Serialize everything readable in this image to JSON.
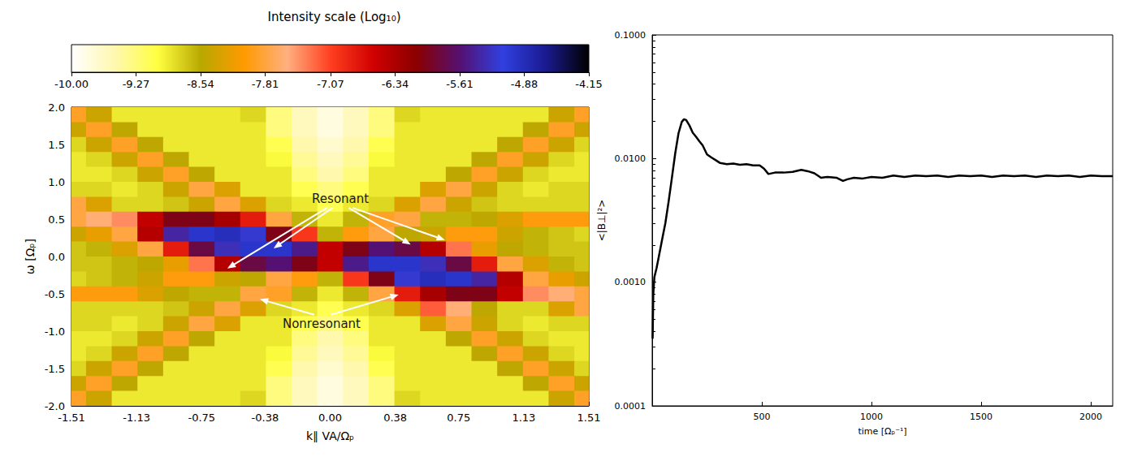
{
  "chart_data": [
    {
      "type": "heatmap",
      "xlabel": "k∥ VA/Ωₚ",
      "ylabel": "ω [Ωₚ]",
      "x": [
        -1.5,
        -1.35,
        -1.2,
        -1.05,
        -0.9,
        -0.75,
        -0.6,
        -0.45,
        -0.3,
        -0.15,
        0,
        0.15,
        0.3,
        0.45,
        0.6,
        0.75,
        0.9,
        1.05,
        1.2,
        1.35,
        1.5
      ],
      "y": [
        1.9,
        1.7,
        1.5,
        1.3,
        1.1,
        0.9,
        0.7,
        0.5,
        0.3,
        0.1,
        -0.1,
        -0.3,
        -0.5,
        -0.7,
        -0.9,
        -1.1,
        -1.3,
        -1.5,
        -1.7,
        -1.9
      ],
      "cells": [
        [
          -7.9,
          -8.4,
          -8.9,
          -8.9,
          -8.9,
          -8.9,
          -8.9,
          -8.8,
          -9.3,
          -9.6,
          -9.8,
          -9.6,
          -9.3,
          -8.8,
          -8.9,
          -8.9,
          -8.9,
          -8.9,
          -8.9,
          -8.4,
          -7.9
        ],
        [
          -8.4,
          -7.9,
          -8.5,
          -8.9,
          -8.9,
          -8.9,
          -8.9,
          -8.9,
          -9.3,
          -9.6,
          -9.8,
          -9.6,
          -9.3,
          -8.9,
          -8.9,
          -8.9,
          -8.9,
          -8.9,
          -8.5,
          -7.9,
          -8.4
        ],
        [
          -8.8,
          -8.4,
          -7.9,
          -8.5,
          -8.9,
          -8.9,
          -8.9,
          -8.9,
          -9.1,
          -9.5,
          -9.7,
          -9.5,
          -9.1,
          -8.9,
          -8.9,
          -8.9,
          -8.9,
          -8.5,
          -7.9,
          -8.4,
          -8.8
        ],
        [
          -8.9,
          -8.8,
          -8.4,
          -7.9,
          -8.5,
          -8.9,
          -8.9,
          -8.9,
          -9.0,
          -9.4,
          -9.6,
          -9.4,
          -9.0,
          -8.9,
          -8.9,
          -8.9,
          -8.5,
          -7.9,
          -8.4,
          -8.8,
          -8.9
        ],
        [
          -8.9,
          -8.9,
          -8.8,
          -8.4,
          -7.9,
          -8.5,
          -8.9,
          -8.9,
          -8.9,
          -9.3,
          -9.5,
          -9.3,
          -8.9,
          -8.9,
          -8.9,
          -8.5,
          -7.9,
          -8.4,
          -8.8,
          -8.9,
          -8.9
        ],
        [
          -8.8,
          -8.8,
          -8.9,
          -8.8,
          -8.4,
          -7.8,
          -8.3,
          -8.9,
          -8.9,
          -9.1,
          -9.3,
          -9.1,
          -8.9,
          -8.9,
          -8.3,
          -7.8,
          -8.4,
          -8.8,
          -8.9,
          -8.8,
          -8.8
        ],
        [
          -7.8,
          -8.3,
          -8.8,
          -8.8,
          -8.7,
          -8.4,
          -7.8,
          -8.3,
          -8.8,
          -8.9,
          -9.1,
          -8.9,
          -8.8,
          -8.3,
          -7.8,
          -8.4,
          -8.7,
          -8.8,
          -8.8,
          -8.8,
          -8.8
        ],
        [
          -7.8,
          -7.6,
          -7.4,
          -6.5,
          -6.0,
          -6.0,
          -6.3,
          -6.8,
          -7.8,
          -8.6,
          -8.9,
          -8.6,
          -7.9,
          -7.8,
          -8.6,
          -8.6,
          -8.5,
          -8.3,
          -8.0,
          -8.0,
          -8.0
        ],
        [
          -8.4,
          -8.2,
          -7.8,
          -6.4,
          -5.4,
          -5.0,
          -4.9,
          -5.2,
          -6.0,
          -7.0,
          -8.6,
          -8.0,
          -7.8,
          -8.5,
          -8.4,
          -8.0,
          -8.0,
          -8.4,
          -8.6,
          -8.7,
          -8.8
        ],
        [
          -8.7,
          -8.6,
          -8.3,
          -7.8,
          -6.8,
          -5.8,
          -5.3,
          -5.0,
          -5.0,
          -5.5,
          -6.5,
          -6.0,
          -5.6,
          -5.8,
          -6.4,
          -7.3,
          -8.2,
          -8.5,
          -8.6,
          -8.7,
          -8.7
        ],
        [
          -8.7,
          -8.7,
          -8.6,
          -8.5,
          -8.2,
          -7.3,
          -6.4,
          -5.8,
          -5.6,
          -6.0,
          -6.5,
          -5.5,
          -5.0,
          -5.0,
          -5.3,
          -5.8,
          -6.8,
          -7.8,
          -8.3,
          -8.6,
          -8.7
        ],
        [
          -8.8,
          -8.7,
          -8.6,
          -8.4,
          -8.0,
          -8.0,
          -8.4,
          -8.5,
          -7.8,
          -8.0,
          -8.6,
          -7.0,
          -6.0,
          -5.2,
          -4.9,
          -5.0,
          -5.4,
          -6.4,
          -7.8,
          -8.2,
          -8.4
        ],
        [
          -8.0,
          -8.0,
          -8.0,
          -8.3,
          -8.5,
          -8.6,
          -8.6,
          -7.8,
          -7.9,
          -8.6,
          -8.9,
          -8.6,
          -7.8,
          -6.8,
          -6.3,
          -6.0,
          -6.0,
          -6.5,
          -7.4,
          -7.6,
          -7.8
        ],
        [
          -8.8,
          -8.8,
          -8.8,
          -8.8,
          -8.7,
          -8.4,
          -7.8,
          -8.3,
          -8.8,
          -8.9,
          -9.1,
          -8.9,
          -8.8,
          -8.3,
          -7.2,
          -7.6,
          -8.5,
          -8.8,
          -8.8,
          -8.3,
          -7.8
        ],
        [
          -8.8,
          -8.8,
          -8.9,
          -8.8,
          -8.4,
          -7.8,
          -8.3,
          -8.9,
          -8.9,
          -9.1,
          -9.3,
          -9.1,
          -8.9,
          -8.9,
          -8.3,
          -7.8,
          -8.4,
          -8.8,
          -8.9,
          -8.8,
          -8.8
        ],
        [
          -8.9,
          -8.9,
          -8.8,
          -8.4,
          -7.9,
          -8.5,
          -8.9,
          -8.9,
          -8.9,
          -9.3,
          -9.5,
          -9.3,
          -8.9,
          -8.9,
          -8.9,
          -8.5,
          -7.9,
          -8.4,
          -8.8,
          -8.9,
          -8.9
        ],
        [
          -8.9,
          -8.8,
          -8.4,
          -7.9,
          -8.5,
          -8.9,
          -8.9,
          -8.9,
          -9.0,
          -9.4,
          -9.6,
          -9.4,
          -9.0,
          -8.9,
          -8.9,
          -8.9,
          -8.5,
          -7.9,
          -8.4,
          -8.8,
          -8.9
        ],
        [
          -8.8,
          -8.4,
          -7.9,
          -8.5,
          -8.9,
          -8.9,
          -8.9,
          -8.9,
          -9.1,
          -9.5,
          -9.7,
          -9.5,
          -9.1,
          -8.9,
          -8.9,
          -8.9,
          -8.9,
          -8.5,
          -7.9,
          -8.4,
          -8.8
        ],
        [
          -8.4,
          -7.9,
          -8.5,
          -8.9,
          -8.9,
          -8.9,
          -8.9,
          -8.9,
          -9.3,
          -9.6,
          -9.8,
          -9.6,
          -9.3,
          -8.9,
          -8.9,
          -8.9,
          -8.9,
          -8.9,
          -8.5,
          -7.9,
          -8.4
        ],
        [
          -7.9,
          -8.4,
          -8.9,
          -8.9,
          -8.9,
          -8.9,
          -8.9,
          -8.8,
          -9.3,
          -9.6,
          -9.8,
          -9.6,
          -9.3,
          -8.8,
          -8.9,
          -8.9,
          -8.9,
          -8.9,
          -8.9,
          -8.4,
          -7.9
        ]
      ],
      "xlim": [
        -1.51,
        1.51
      ],
      "xticks": [
        -1.51,
        -1.13,
        -0.75,
        -0.38,
        {
          "value": 0,
          "label": "0.00"
        },
        0.38,
        0.75,
        1.13,
        1.51
      ],
      "ylim": [
        -2,
        2
      ],
      "yticks": [
        {
          "value": -2,
          "label": "-2.0"
        },
        -1.5,
        {
          "value": -1,
          "label": "-1.0"
        },
        -0.5,
        {
          "value": 0,
          "label": "0.0"
        },
        0.5,
        {
          "value": 1,
          "label": "1.0"
        },
        1.5,
        {
          "value": 2,
          "label": "2.0"
        }
      ],
      "colorbar": {
        "label": "Intensity scale (Log₁₀)",
        "range": [
          -10,
          -4.15
        ],
        "ticks": [
          {
            "value": -10,
            "label": "-10.00"
          },
          -9.27,
          -8.54,
          -7.81,
          -7.07,
          -6.34,
          -5.61,
          -4.88,
          -4.15
        ]
      },
      "annotations": [
        {
          "text": "Resonant",
          "at": [
            0.06,
            0.77
          ],
          "arrows": [
            [
              -0.6,
              -0.16
            ],
            [
              -0.33,
              0.11
            ],
            [
              0.47,
              0.16
            ],
            [
              0.67,
              0.22
            ]
          ]
        },
        {
          "text": "Nonresonant",
          "at": [
            -0.05,
            -0.9
          ],
          "arrows": [
            [
              -0.41,
              -0.57
            ],
            [
              0.4,
              -0.51
            ]
          ]
        }
      ]
    },
    {
      "type": "line",
      "xlabel": "time [Ωₚ⁻¹]",
      "ylabel": "<|B⊥|²>",
      "log": "y",
      "color": "#000000",
      "x": [
        2,
        5,
        10,
        20,
        30,
        45,
        60,
        75,
        90,
        105,
        120,
        135,
        145,
        155,
        170,
        185,
        200,
        215,
        230,
        250,
        270,
        290,
        310,
        340,
        370,
        400,
        430,
        460,
        490,
        510,
        530,
        560,
        600,
        640,
        680,
        710,
        740,
        770,
        800,
        840,
        870,
        890,
        920,
        960,
        1000,
        1050,
        1100,
        1150,
        1200,
        1250,
        1300,
        1350,
        1400,
        1450,
        1500,
        1550,
        1600,
        1650,
        1700,
        1750,
        1800,
        1850,
        1900,
        1950,
        2000,
        2050,
        2100
      ],
      "values": [
        0.00035,
        0.0008,
        0.0011,
        0.0013,
        0.0016,
        0.0022,
        0.003,
        0.0045,
        0.007,
        0.011,
        0.016,
        0.0198,
        0.0208,
        0.0205,
        0.0185,
        0.0162,
        0.015,
        0.0138,
        0.0128,
        0.0108,
        0.0102,
        0.0097,
        0.0092,
        0.009,
        0.0091,
        0.0089,
        0.009,
        0.0088,
        0.0088,
        0.0083,
        0.0075,
        0.0077,
        0.0077,
        0.0078,
        0.0081,
        0.0079,
        0.0076,
        0.007,
        0.0071,
        0.007,
        0.0066,
        0.0068,
        0.007,
        0.0069,
        0.0071,
        0.007,
        0.0073,
        0.0071,
        0.0073,
        0.0072,
        0.0073,
        0.0071,
        0.0073,
        0.0072,
        0.0073,
        0.0071,
        0.0073,
        0.0072,
        0.0073,
        0.0071,
        0.0073,
        0.0072,
        0.0073,
        0.0071,
        0.0073,
        0.0072,
        0.0072
      ],
      "xlim": [
        0,
        2100
      ],
      "xticks": [
        500,
        1000,
        1500,
        2000
      ],
      "ylim": [
        0.0001,
        0.1
      ],
      "yticks": [
        0.0001,
        {
          "value": 0.001,
          "label": "0.0010"
        },
        {
          "value": 0.01,
          "label": "0.0100"
        },
        {
          "value": 0.1,
          "label": "0.1000"
        }
      ]
    }
  ]
}
